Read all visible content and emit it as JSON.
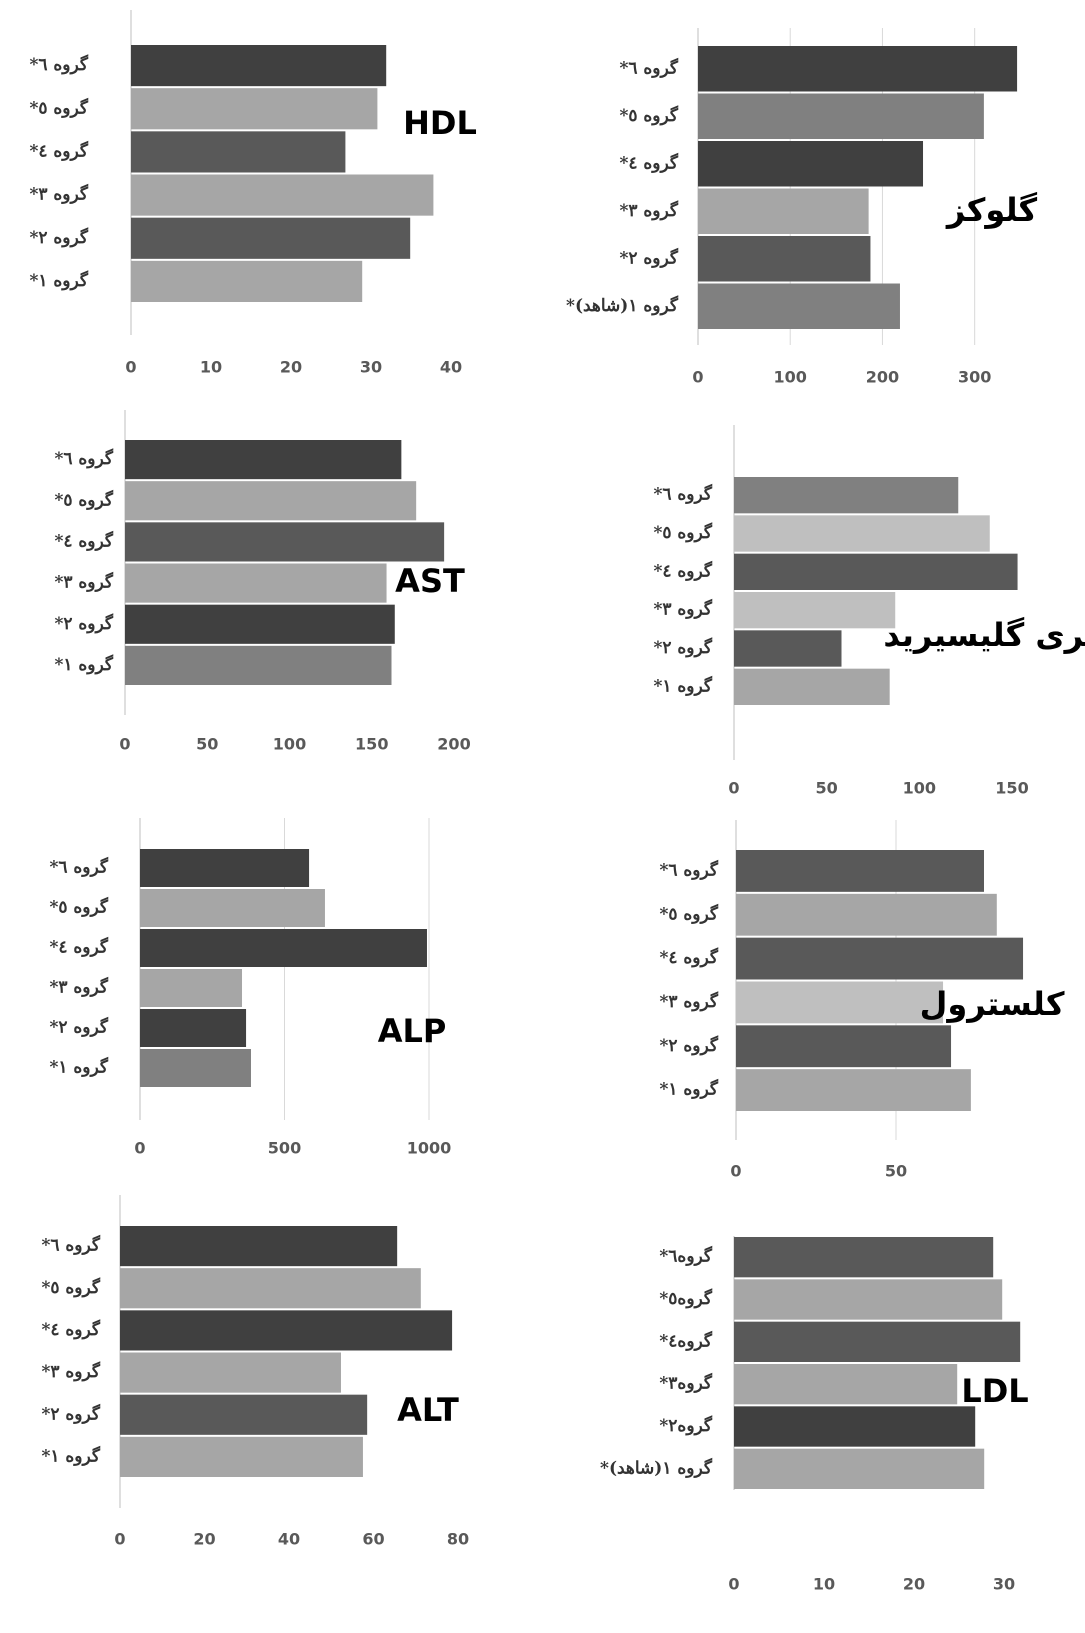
{
  "chart_data": [
    {
      "type": "bar",
      "title": "HDL",
      "orientation": "horizontal",
      "categories": [
        "*گروه ٦",
        "*گروه ٥",
        "*گروه ٤",
        "*گروه ٣",
        "*گروه ٢",
        "*گروه ١"
      ],
      "values": [
        31.9,
        30.8,
        26.8,
        37.8,
        34.9,
        28.9
      ],
      "colors": [
        "#404040",
        "#a6a6a6",
        "#595959",
        "#a6a6a6",
        "#595959",
        "#a6a6a6"
      ],
      "xlim": [
        0,
        40
      ],
      "xticks": [
        0,
        10,
        20,
        30,
        40
      ],
      "grid": false
    },
    {
      "type": "bar",
      "title": "گلوکز",
      "orientation": "horizontal",
      "categories": [
        "*گروه ٦",
        "*گروه ٥",
        "*گروه ٤",
        "*گروه ٣",
        "*گروه ٢",
        "*گروه ١(شاهد)"
      ],
      "values": [
        346,
        310,
        244,
        185,
        187,
        219
      ],
      "colors": [
        "#404040",
        "#808080",
        "#404040",
        "#a6a6a6",
        "#595959",
        "#808080"
      ],
      "xlim": [
        0,
        360
      ],
      "xticks": [
        0,
        100,
        200,
        300
      ],
      "grid": true
    },
    {
      "type": "bar",
      "title": "AST",
      "orientation": "horizontal",
      "categories": [
        "*گروه ٦",
        "*گروه ٥",
        "*گروه ٤",
        "*گروه ٣",
        "*گروه ٢",
        "*گروه ١"
      ],
      "values": [
        168,
        177,
        194,
        159,
        164,
        162
      ],
      "colors": [
        "#404040",
        "#a6a6a6",
        "#595959",
        "#a6a6a6",
        "#404040",
        "#808080"
      ],
      "xlim": [
        0,
        200
      ],
      "xticks": [
        0,
        50,
        100,
        150,
        200
      ],
      "grid": false
    },
    {
      "type": "bar",
      "title": "تری گلیسیرید",
      "orientation": "horizontal",
      "categories": [
        "*گروه ٦",
        "*گروه ٥",
        "*گروه ٤",
        "*گروه ٣",
        "*گروه ٢",
        "*گروه ١"
      ],
      "values": [
        121,
        138,
        153,
        87,
        58,
        84
      ],
      "colors": [
        "#808080",
        "#bfbfbf",
        "#595959",
        "#bfbfbf",
        "#595959",
        "#a6a6a6"
      ],
      "xlim": [
        0,
        150
      ],
      "xticks": [
        0,
        50,
        100,
        150
      ],
      "grid": false
    },
    {
      "type": "bar",
      "title": "ALP",
      "orientation": "horizontal",
      "categories": [
        "*گروه ٦",
        "*گروه ٥",
        "*گروه ٤",
        "*گروه ٣",
        "*گروه ٢",
        "*گروه ١"
      ],
      "values": [
        585,
        640,
        993,
        353,
        367,
        384
      ],
      "colors": [
        "#404040",
        "#a6a6a6",
        "#404040",
        "#a6a6a6",
        "#404040",
        "#808080"
      ],
      "xlim": [
        0,
        1000
      ],
      "xticks": [
        0,
        500,
        1000
      ],
      "grid": true
    },
    {
      "type": "bar",
      "title": "کلسترول",
      "orientation": "horizontal",
      "categories": [
        "*گروه ٦",
        "*گروه ٥",
        "*گروه ٤",
        "*گروه ٣",
        "*گروه ٢",
        "*گروه ١"
      ],
      "values": [
        77.5,
        81.5,
        89.7,
        64.7,
        67.2,
        73.4
      ],
      "colors": [
        "#595959",
        "#a6a6a6",
        "#595959",
        "#bfbfbf",
        "#595959",
        "#a6a6a6"
      ],
      "xlim": [
        0,
        90
      ],
      "xticks": [
        0,
        50
      ],
      "grid": true
    },
    {
      "type": "bar",
      "title": "ALT",
      "orientation": "horizontal",
      "categories": [
        "*گروه ٦",
        "*گروه ٥",
        "*گروه ٤",
        "*گروه ٣",
        "*گروه ٢",
        "*گروه ١"
      ],
      "values": [
        65.6,
        71.2,
        78.6,
        52.3,
        58.5,
        57.5
      ],
      "colors": [
        "#404040",
        "#a6a6a6",
        "#404040",
        "#a6a6a6",
        "#595959",
        "#a6a6a6"
      ],
      "xlim": [
        0,
        80
      ],
      "xticks": [
        0,
        20,
        40,
        60,
        80
      ],
      "grid": false
    },
    {
      "type": "bar",
      "title": "LDL",
      "orientation": "horizontal",
      "categories": [
        "*گروه٦",
        "*گروه٥",
        "*گروه٤",
        "*گروه٣",
        "*گروه٢",
        "*گروه ١(شاهد)"
      ],
      "values": [
        28.8,
        29.8,
        31.8,
        24.8,
        26.8,
        27.8
      ],
      "colors": [
        "#595959",
        "#a6a6a6",
        "#595959",
        "#a6a6a6",
        "#404040",
        "#a6a6a6"
      ],
      "xlim": [
        0,
        35
      ],
      "xticks": [
        0,
        10,
        20,
        30
      ],
      "grid": false
    }
  ]
}
